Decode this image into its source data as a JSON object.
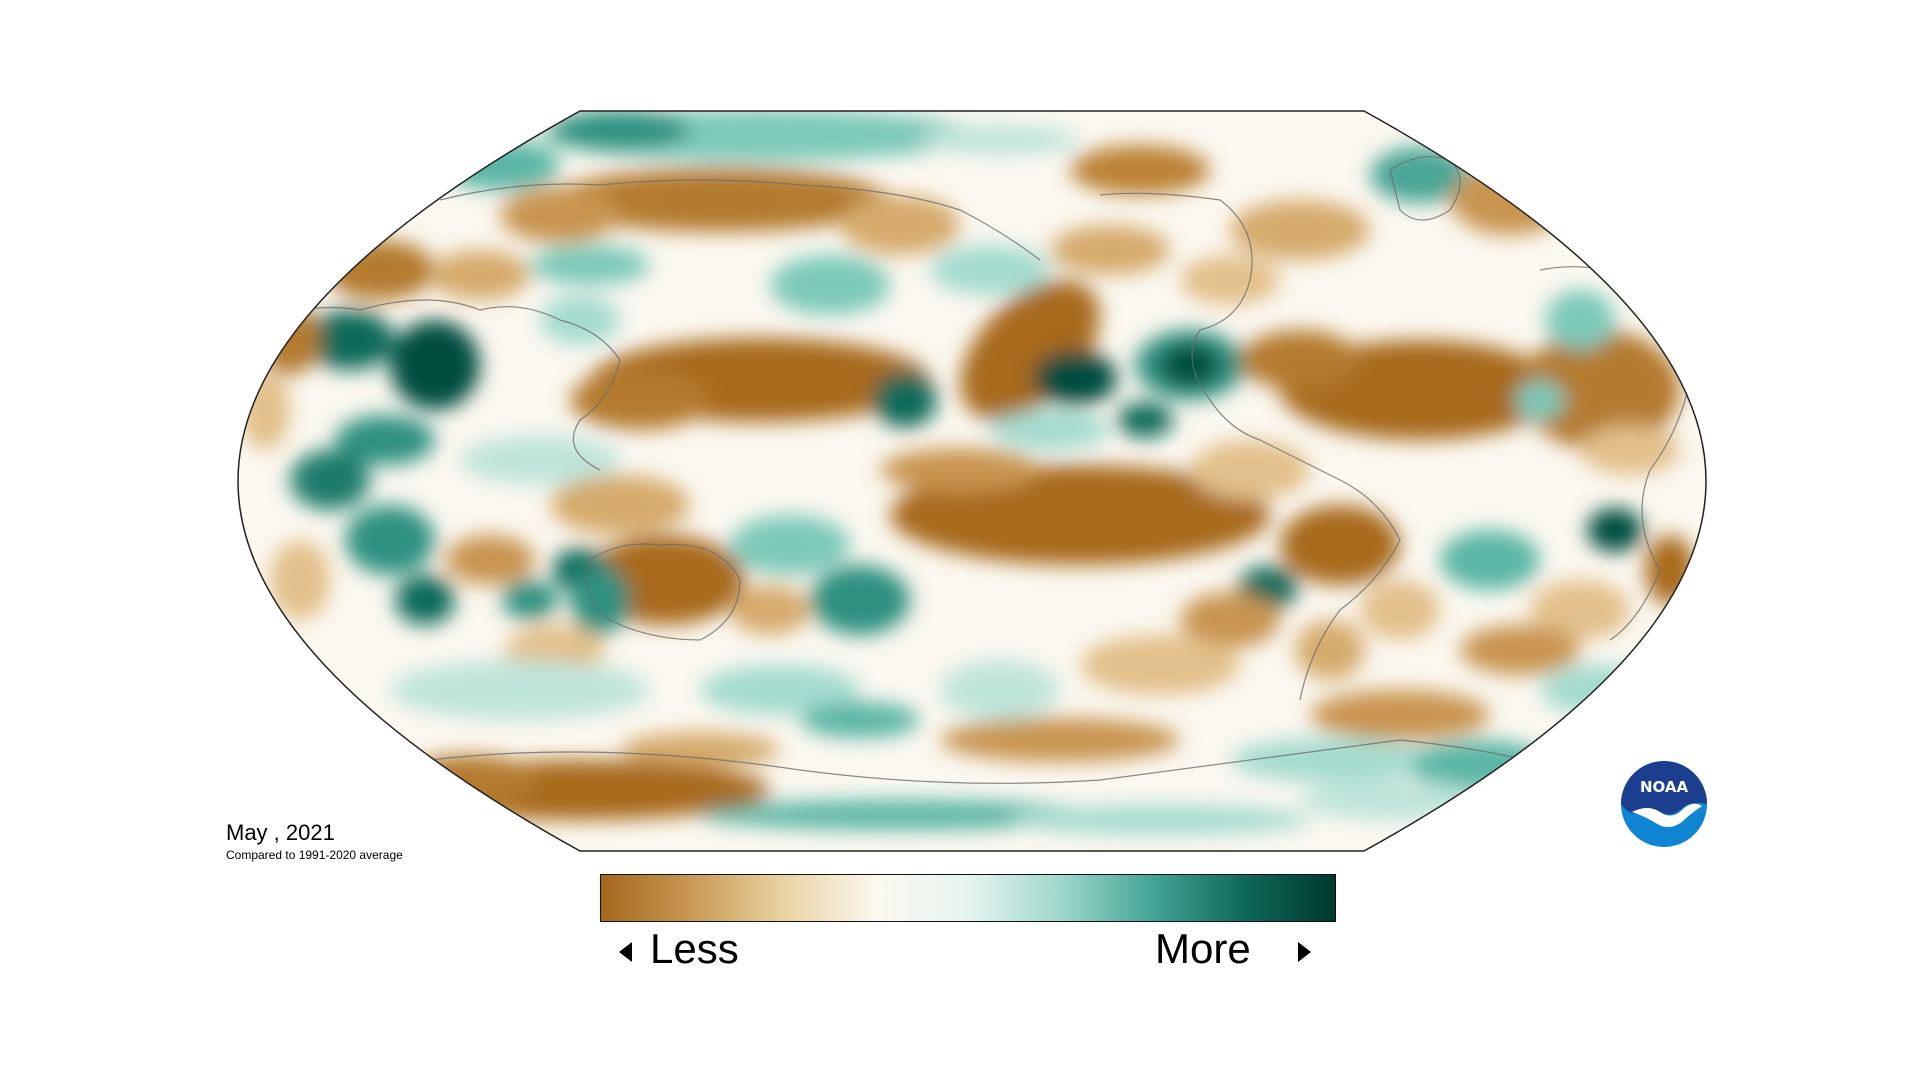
{
  "map": {
    "caption_date": "May , 2021",
    "caption_sub": "Compared to 1991-2020 average"
  },
  "legend": {
    "low_label": "Less",
    "high_label": "More",
    "colors": [
      "#a4671b",
      "#c99a55",
      "#ead3a4",
      "#fbf8ef",
      "#e6f4f1",
      "#9fd8cb",
      "#44a596",
      "#0f6a5a",
      "#00382e"
    ]
  },
  "logo": {
    "text": "NOAA",
    "colors": [
      "#1b3e8f",
      "#0f85d4",
      "#ffffff"
    ]
  },
  "palette": {
    "dry": "#a86b1e",
    "dry_light": "#e2c08a",
    "neutral": "#fbf8f0",
    "wet_light": "#a4dbcf",
    "wet": "#2f9180",
    "wet_dark": "#004d40"
  }
}
